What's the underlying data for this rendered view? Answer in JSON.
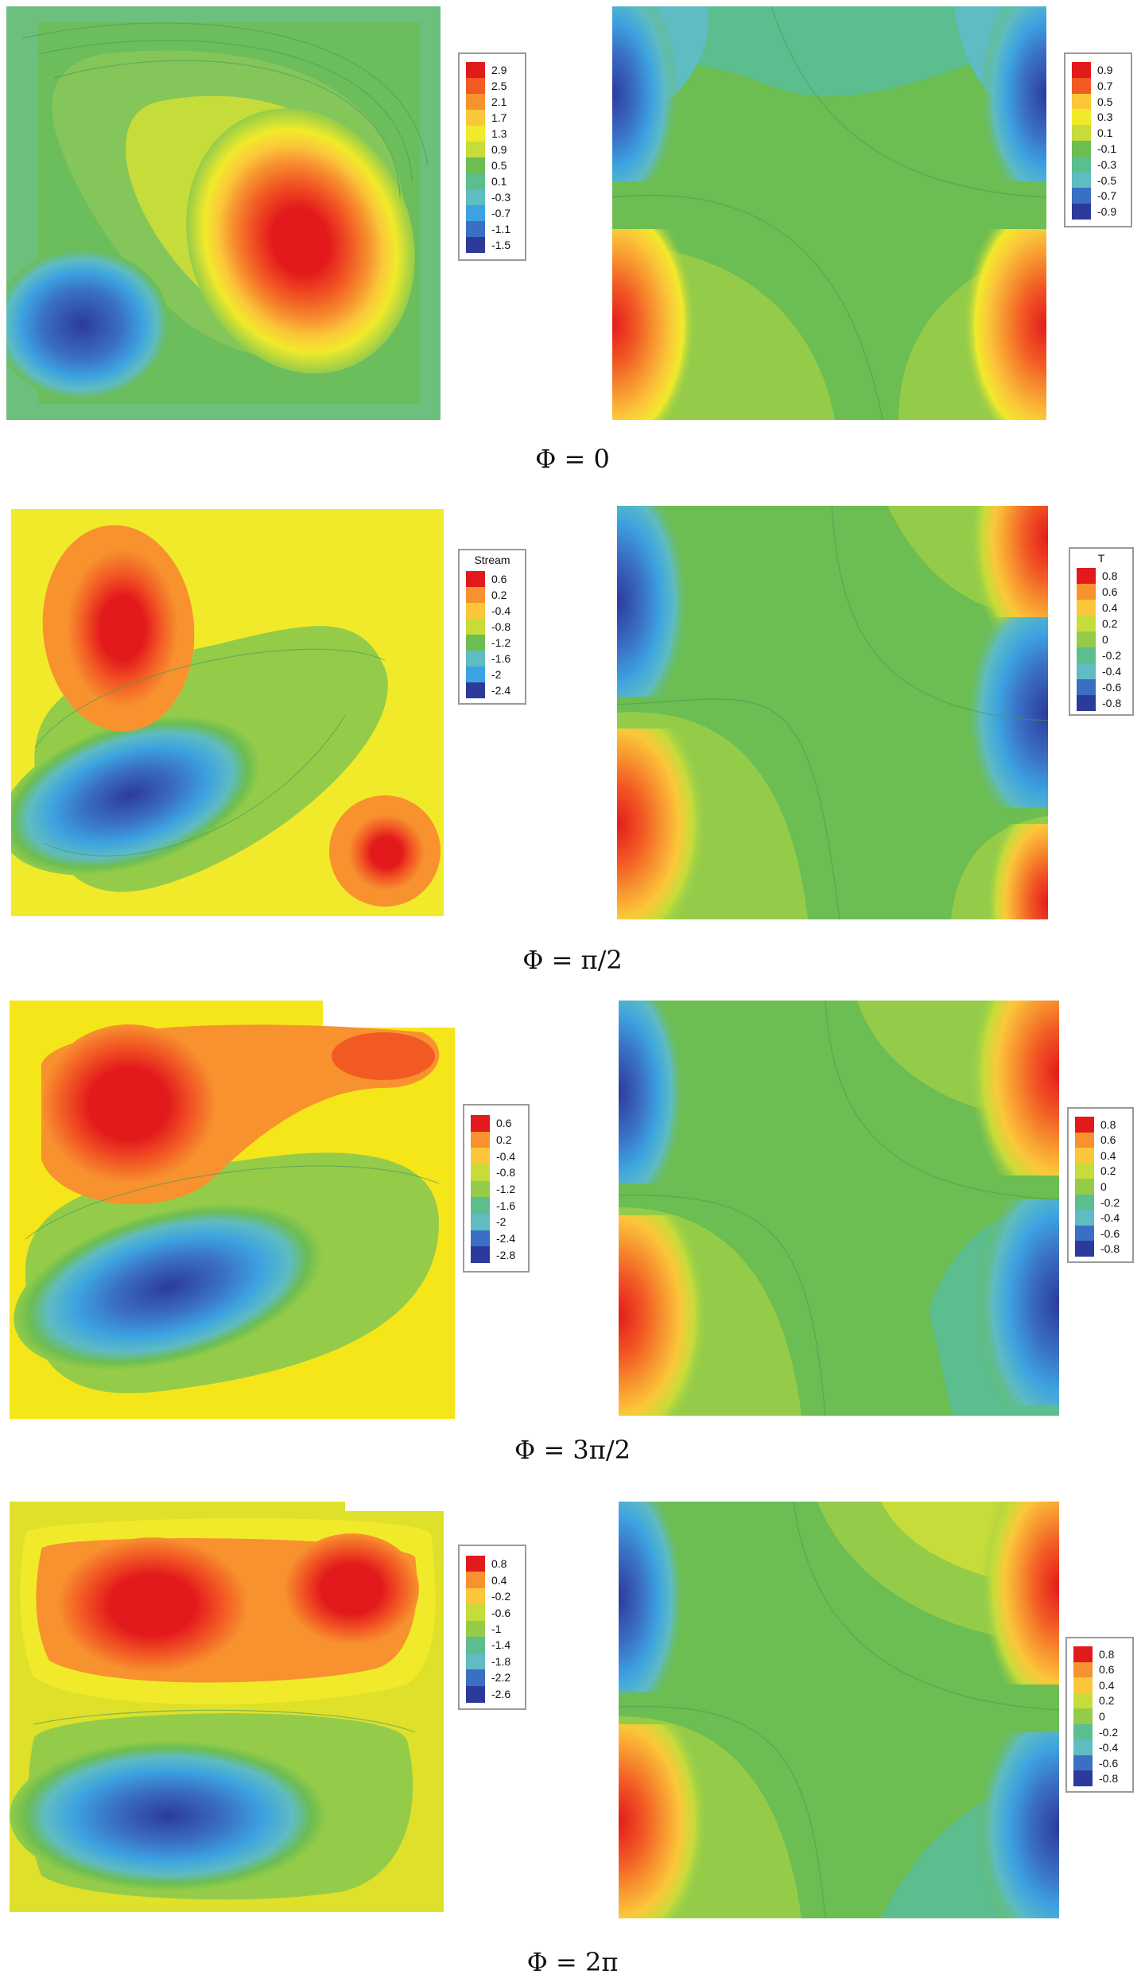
{
  "panels": [
    {
      "caption": "Φ = 0",
      "stream_legend": {
        "title": "",
        "labels": [
          "2.9",
          "2.5",
          "2.1",
          "1.7",
          "1.3",
          "0.9",
          "0.5",
          "0.1",
          "-0.3",
          "-0.7",
          "-1.1",
          "-1.5"
        ]
      },
      "temp_legend": {
        "title": "",
        "labels": [
          "0.9",
          "0.7",
          "0.5",
          "0.3",
          "0.1",
          "-0.1",
          "-0.3",
          "-0.5",
          "-0.7",
          "-0.9"
        ]
      }
    },
    {
      "caption": "Φ = π/2",
      "stream_legend": {
        "title": "Stream",
        "labels": [
          "0.6",
          "0.2",
          "-0.4",
          "-0.8",
          "-1.2",
          "-1.6",
          "-2",
          "-2.4"
        ]
      },
      "temp_legend": {
        "title": "T",
        "labels": [
          "0.8",
          "0.6",
          "0.4",
          "0.2",
          "0",
          "-0.2",
          "-0.4",
          "-0.6",
          "-0.8"
        ]
      }
    },
    {
      "caption": "Φ = 3π/2",
      "stream_legend": {
        "title": "",
        "labels": [
          "0.6",
          "0.2",
          "-0.4",
          "-0.8",
          "-1.2",
          "-1.6",
          "-2",
          "-2.4",
          "-2.8"
        ]
      },
      "temp_legend": {
        "title": "",
        "labels": [
          "0.8",
          "0.6",
          "0.4",
          "0.2",
          "0",
          "-0.2",
          "-0.4",
          "-0.6",
          "-0.8"
        ]
      }
    },
    {
      "caption": "Φ = 2π",
      "stream_legend": {
        "title": "",
        "labels": [
          "0.8",
          "0.4",
          "-0.2",
          "-0.6",
          "-1",
          "-1.4",
          "-1.8",
          "-2.2",
          "-2.6"
        ]
      },
      "temp_legend": {
        "title": "",
        "labels": [
          "0.8",
          "0.6",
          "0.4",
          "0.2",
          "0",
          "-0.2",
          "-0.4",
          "-0.6",
          "-0.8"
        ]
      }
    }
  ],
  "colors": {
    "ramp": [
      "#e31a1c",
      "#f25a24",
      "#f7922f",
      "#fbc73a",
      "#f1ea2a",
      "#c6dc3a",
      "#94cc4a",
      "#6cbd52",
      "#5cbd8e",
      "#5ebcc2",
      "#3da3e0",
      "#3a6fc4",
      "#2c3a9c"
    ]
  },
  "chart_data": [
    {
      "type": "heatmap",
      "field": "stream function",
      "title": "",
      "panel_caption": "Φ = 0",
      "levels": [
        2.9,
        2.5,
        2.1,
        1.7,
        1.3,
        0.9,
        0.5,
        0.1,
        -0.3,
        -0.7,
        -1.1,
        -1.5
      ],
      "extrema": {
        "max_approx": 2.9,
        "min_approx": -1.5
      },
      "structures": [
        {
          "kind": "clockwise-positive cell",
          "location": "center-right",
          "peak": 2.9
        },
        {
          "kind": "negative cell",
          "location": "lower-left",
          "trough": -1.5
        }
      ]
    },
    {
      "type": "heatmap",
      "field": "temperature",
      "title": "",
      "panel_caption": "Φ = 0",
      "levels": [
        0.9,
        0.7,
        0.5,
        0.3,
        0.1,
        -0.1,
        -0.3,
        -0.5,
        -0.7,
        -0.9
      ],
      "structures": [
        {
          "kind": "cold",
          "location": "top-left wall",
          "value": -0.9
        },
        {
          "kind": "hot",
          "location": "bottom-left wall",
          "value": 0.9
        },
        {
          "kind": "cold",
          "location": "top-right wall",
          "value": -0.9
        },
        {
          "kind": "hot",
          "location": "bottom-right wall",
          "value": 0.9
        }
      ]
    },
    {
      "type": "heatmap",
      "field": "stream function",
      "title": "Stream",
      "panel_caption": "Φ = π/2",
      "levels": [
        0.6,
        0.2,
        -0.4,
        -0.8,
        -1.2,
        -1.6,
        -2,
        -2.4
      ],
      "structures": [
        {
          "kind": "positive cell",
          "location": "upper-left",
          "peak": 0.6
        },
        {
          "kind": "negative cell",
          "location": "lower-left-center",
          "trough": -2.4
        },
        {
          "kind": "positive cell",
          "location": "lower-right",
          "peak": 0.6
        }
      ]
    },
    {
      "type": "heatmap",
      "field": "temperature",
      "title": "T",
      "panel_caption": "Φ = π/2",
      "levels": [
        0.8,
        0.6,
        0.4,
        0.2,
        0,
        -0.2,
        -0.4,
        -0.6,
        -0.8
      ],
      "structures": [
        {
          "kind": "cold",
          "location": "top-left wall",
          "value": -0.8
        },
        {
          "kind": "hot",
          "location": "bottom-left wall",
          "value": 0.8
        },
        {
          "kind": "hot",
          "location": "top-right corner",
          "value": 0.8
        },
        {
          "kind": "cold",
          "location": "right wall middle",
          "value": -0.8
        },
        {
          "kind": "hot",
          "location": "bottom-right corner",
          "value": 0.8
        }
      ]
    },
    {
      "type": "heatmap",
      "field": "stream function",
      "title": "",
      "panel_caption": "Φ = 3π/2",
      "levels": [
        0.6,
        0.2,
        -0.4,
        -0.8,
        -1.2,
        -1.6,
        -2,
        -2.4,
        -2.8
      ],
      "structures": [
        {
          "kind": "positive cell",
          "location": "upper-left",
          "peak": 0.6
        },
        {
          "kind": "positive cell",
          "location": "upper-right",
          "peak": 0.4
        },
        {
          "kind": "negative cell",
          "location": "lower-left-center",
          "trough": -2.8
        }
      ]
    },
    {
      "type": "heatmap",
      "field": "temperature",
      "title": "",
      "panel_caption": "Φ = 3π/2",
      "levels": [
        0.8,
        0.6,
        0.4,
        0.2,
        0,
        -0.2,
        -0.4,
        -0.6,
        -0.8
      ],
      "structures": [
        {
          "kind": "cold",
          "location": "top-left wall",
          "value": -0.8
        },
        {
          "kind": "hot",
          "location": "bottom-left wall",
          "value": 0.8
        },
        {
          "kind": "hot",
          "location": "top-right wall",
          "value": 0.8
        },
        {
          "kind": "cold",
          "location": "bottom-right wall",
          "value": -0.8
        }
      ]
    },
    {
      "type": "heatmap",
      "field": "stream function",
      "title": "",
      "panel_caption": "Φ = 2π",
      "levels": [
        0.8,
        0.4,
        -0.2,
        -0.6,
        -1,
        -1.4,
        -1.8,
        -2.2,
        -2.6
      ],
      "structures": [
        {
          "kind": "positive cell",
          "location": "upper band",
          "peak": 0.8
        },
        {
          "kind": "negative cell",
          "location": "lower band",
          "trough": -2.6
        }
      ]
    },
    {
      "type": "heatmap",
      "field": "temperature",
      "title": "",
      "panel_caption": "Φ = 2π",
      "levels": [
        0.8,
        0.6,
        0.4,
        0.2,
        0,
        -0.2,
        -0.4,
        -0.6,
        -0.8
      ],
      "structures": [
        {
          "kind": "cold",
          "location": "top-left wall",
          "value": -0.8
        },
        {
          "kind": "hot",
          "location": "bottom-left wall",
          "value": 0.8
        },
        {
          "kind": "hot",
          "location": "top-right wall",
          "value": 0.8
        },
        {
          "kind": "cold",
          "location": "bottom-right wall",
          "value": -0.8
        }
      ]
    }
  ]
}
